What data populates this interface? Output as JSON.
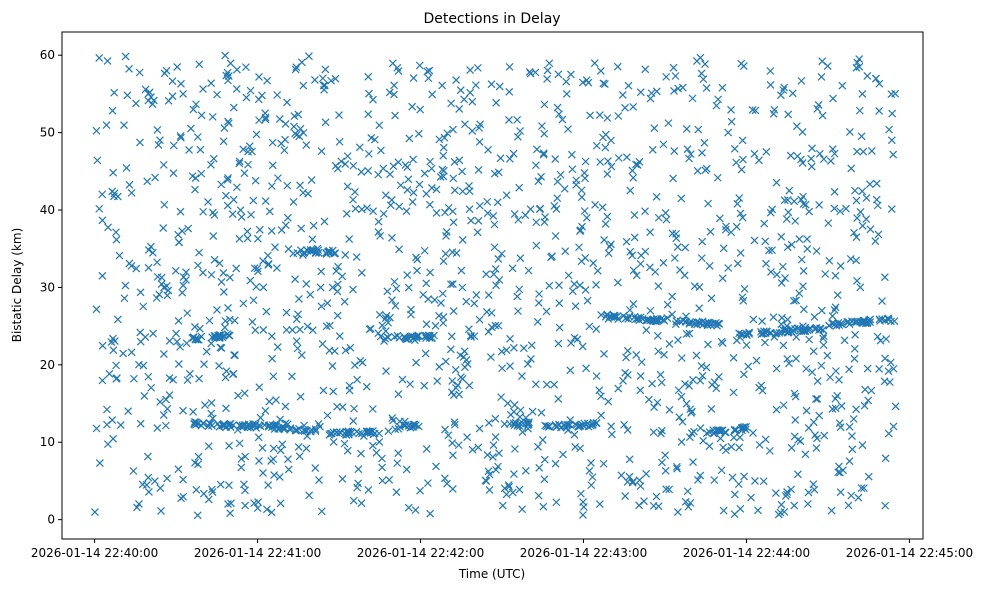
{
  "chart_data": {
    "type": "scatter",
    "title": "Detections in Delay",
    "xlabel": "Time (UTC)",
    "ylabel": "Bistatic Delay (km)",
    "marker": "x",
    "color": "#1f77b4",
    "grid": false,
    "x_ticks": [
      "2026-01-14 22:40:00",
      "2026-01-14 22:41:00",
      "2026-01-14 22:42:00",
      "2026-01-14 22:43:00",
      "2026-01-14 22:44:00",
      "2026-01-14 22:45:00"
    ],
    "xlim": [
      "2026-01-14 22:39:48",
      "2026-01-14 22:45:05"
    ],
    "y_ticks": [
      0,
      10,
      20,
      30,
      40,
      50,
      60
    ],
    "ylim": [
      -2.5,
      63
    ],
    "x_range": [
      "2026-01-14 22:40:00",
      "2026-01-14 22:44:55"
    ],
    "noise_delay_range_km": [
      0.5,
      60
    ],
    "tracks": [
      {
        "start": "2026-01-14 22:40:35",
        "end": "2026-01-14 22:40:55",
        "delay_start_km": 12.4,
        "delay_end_km": 12.1
      },
      {
        "start": "2026-01-14 22:40:55",
        "end": "2026-01-14 22:41:20",
        "delay_start_km": 12.2,
        "delay_end_km": 11.6
      },
      {
        "start": "2026-01-14 22:41:25",
        "end": "2026-01-14 22:41:45",
        "delay_start_km": 11.1,
        "delay_end_km": 11.3
      },
      {
        "start": "2026-01-14 22:41:50",
        "end": "2026-01-14 22:42:00",
        "delay_start_km": 11.9,
        "delay_end_km": 12.1
      },
      {
        "start": "2026-01-14 22:42:30",
        "end": "2026-01-14 22:42:40",
        "delay_start_km": 12.2,
        "delay_end_km": 12.4
      },
      {
        "start": "2026-01-14 22:42:45",
        "end": "2026-01-14 22:43:05",
        "delay_start_km": 12.0,
        "delay_end_km": 12.3
      },
      {
        "start": "2026-01-14 22:43:45",
        "end": "2026-01-14 22:44:00",
        "delay_start_km": 11.2,
        "delay_end_km": 11.8
      },
      {
        "start": "2026-01-14 22:40:35",
        "end": "2026-01-14 22:40:50",
        "delay_start_km": 23.4,
        "delay_end_km": 23.8
      },
      {
        "start": "2026-01-14 22:41:45",
        "end": "2026-01-14 22:42:05",
        "delay_start_km": 23.5,
        "delay_end_km": 23.6
      },
      {
        "start": "2026-01-14 22:43:08",
        "end": "2026-01-14 22:43:50",
        "delay_start_km": 26.3,
        "delay_end_km": 25.2
      },
      {
        "start": "2026-01-14 22:43:55",
        "end": "2026-01-14 22:44:30",
        "delay_start_km": 23.8,
        "delay_end_km": 24.8
      },
      {
        "start": "2026-01-14 22:44:30",
        "end": "2026-01-14 22:44:55",
        "delay_start_km": 25.2,
        "delay_end_km": 25.9
      },
      {
        "start": "2026-01-14 22:41:15",
        "end": "2026-01-14 22:41:30",
        "delay_start_km": 34.7,
        "delay_end_km": 34.5
      }
    ]
  }
}
